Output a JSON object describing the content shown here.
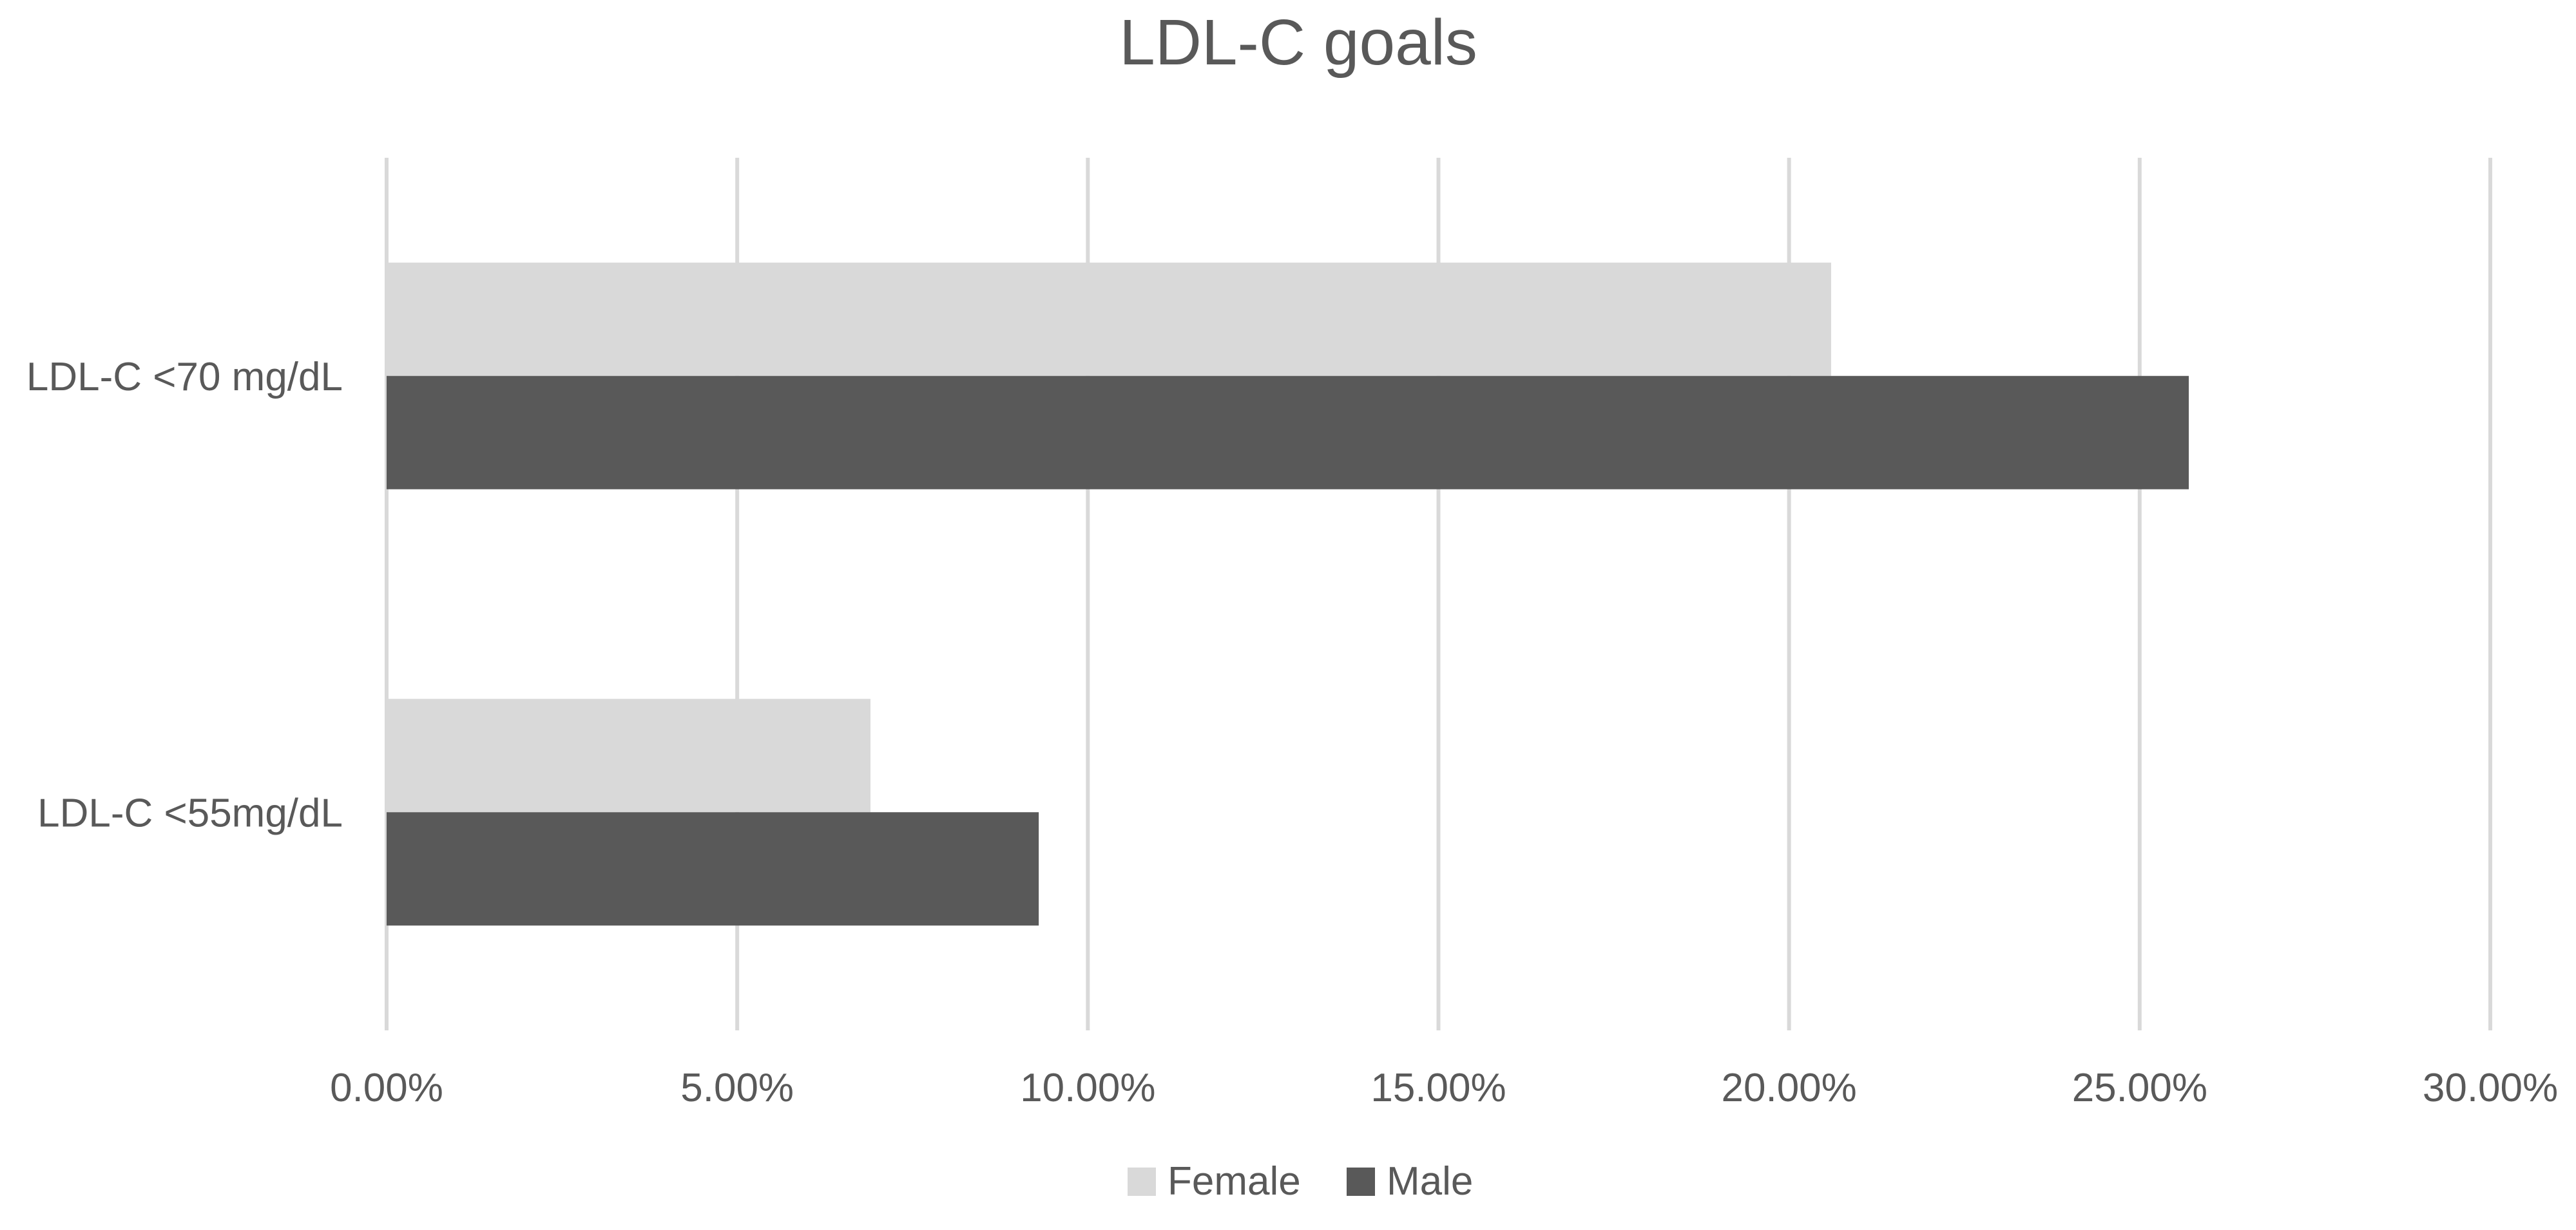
{
  "chart_data": {
    "type": "bar",
    "orientation": "horizontal",
    "title": "LDL-C goals",
    "categories": [
      "LDL-C <70 mg/dL",
      "LDL-C <55mg/dL"
    ],
    "series": [
      {
        "name": "Female",
        "values": [
          0.206,
          0.069
        ],
        "color": "#d9d9d9"
      },
      {
        "name": "Male",
        "values": [
          0.257,
          0.093
        ],
        "color": "#595959"
      }
    ],
    "xlim": [
      0,
      0.3
    ],
    "xticks": [
      0,
      0.05,
      0.1,
      0.15,
      0.2,
      0.25,
      0.3
    ],
    "xtick_labels": [
      "0.00%",
      "5.00%",
      "10.00%",
      "15.00%",
      "20.00%",
      "25.00%",
      "30.00%"
    ],
    "grid": "vertical",
    "legend_position": "bottom",
    "colors": {
      "gridline": "#d9d9d9",
      "text": "#595959"
    }
  }
}
